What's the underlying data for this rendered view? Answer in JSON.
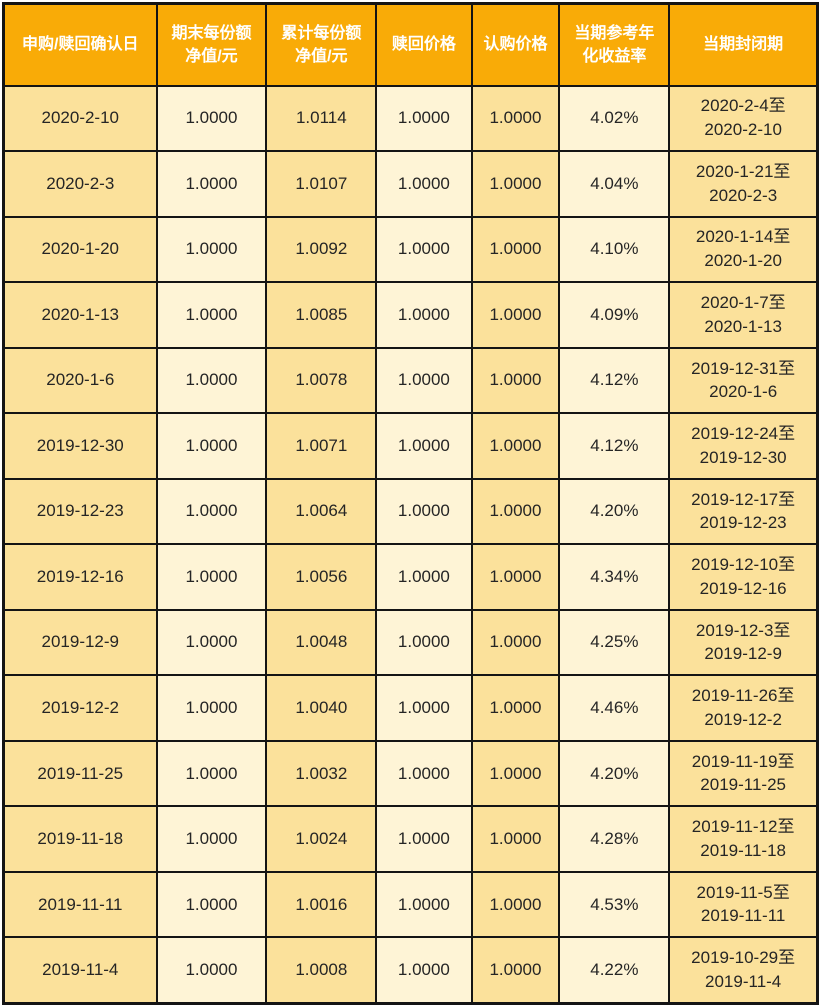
{
  "colors": {
    "header_bg": "#F9AB07",
    "header_text": "#FFFFFF",
    "cell_dark": "#FBE19B",
    "cell_light": "#FEF4D6",
    "border": "#141414",
    "body_text": "#252525"
  },
  "table": {
    "columns": [
      {
        "key": "date",
        "label": "申购/赎回确认日"
      },
      {
        "key": "nav_end",
        "label": "期末每份额\n净值/元"
      },
      {
        "key": "nav_cum",
        "label": "累计每份额\n净值/元"
      },
      {
        "key": "redeem_price",
        "label": "赎回价格"
      },
      {
        "key": "subscribe_price",
        "label": "认购价格"
      },
      {
        "key": "annual_yield",
        "label": "当期参考年\n化收益率"
      },
      {
        "key": "period",
        "label": "当期封闭期"
      }
    ],
    "rows": [
      {
        "date": "2020-2-10",
        "nav_end": "1.0000",
        "nav_cum": "1.0114",
        "redeem_price": "1.0000",
        "subscribe_price": "1.0000",
        "annual_yield": "4.02%",
        "period": "2020-2-4至\n2020-2-10"
      },
      {
        "date": "2020-2-3",
        "nav_end": "1.0000",
        "nav_cum": "1.0107",
        "redeem_price": "1.0000",
        "subscribe_price": "1.0000",
        "annual_yield": "4.04%",
        "period": "2020-1-21至\n2020-2-3"
      },
      {
        "date": "2020-1-20",
        "nav_end": "1.0000",
        "nav_cum": "1.0092",
        "redeem_price": "1.0000",
        "subscribe_price": "1.0000",
        "annual_yield": "4.10%",
        "period": "2020-1-14至\n2020-1-20"
      },
      {
        "date": "2020-1-13",
        "nav_end": "1.0000",
        "nav_cum": "1.0085",
        "redeem_price": "1.0000",
        "subscribe_price": "1.0000",
        "annual_yield": "4.09%",
        "period": "2020-1-7至\n2020-1-13"
      },
      {
        "date": "2020-1-6",
        "nav_end": "1.0000",
        "nav_cum": "1.0078",
        "redeem_price": "1.0000",
        "subscribe_price": "1.0000",
        "annual_yield": "4.12%",
        "period": "2019-12-31至\n2020-1-6"
      },
      {
        "date": "2019-12-30",
        "nav_end": "1.0000",
        "nav_cum": "1.0071",
        "redeem_price": "1.0000",
        "subscribe_price": "1.0000",
        "annual_yield": "4.12%",
        "period": "2019-12-24至\n2019-12-30"
      },
      {
        "date": "2019-12-23",
        "nav_end": "1.0000",
        "nav_cum": "1.0064",
        "redeem_price": "1.0000",
        "subscribe_price": "1.0000",
        "annual_yield": "4.20%",
        "period": "2019-12-17至\n2019-12-23"
      },
      {
        "date": "2019-12-16",
        "nav_end": "1.0000",
        "nav_cum": "1.0056",
        "redeem_price": "1.0000",
        "subscribe_price": "1.0000",
        "annual_yield": "4.34%",
        "period": "2019-12-10至\n2019-12-16"
      },
      {
        "date": "2019-12-9",
        "nav_end": "1.0000",
        "nav_cum": "1.0048",
        "redeem_price": "1.0000",
        "subscribe_price": "1.0000",
        "annual_yield": "4.25%",
        "period": "2019-12-3至\n2019-12-9"
      },
      {
        "date": "2019-12-2",
        "nav_end": "1.0000",
        "nav_cum": "1.0040",
        "redeem_price": "1.0000",
        "subscribe_price": "1.0000",
        "annual_yield": "4.46%",
        "period": "2019-11-26至\n2019-12-2"
      },
      {
        "date": "2019-11-25",
        "nav_end": "1.0000",
        "nav_cum": "1.0032",
        "redeem_price": "1.0000",
        "subscribe_price": "1.0000",
        "annual_yield": "4.20%",
        "period": "2019-11-19至\n2019-11-25"
      },
      {
        "date": "2019-11-18",
        "nav_end": "1.0000",
        "nav_cum": "1.0024",
        "redeem_price": "1.0000",
        "subscribe_price": "1.0000",
        "annual_yield": "4.28%",
        "period": "2019-11-12至\n2019-11-18"
      },
      {
        "date": "2019-11-11",
        "nav_end": "1.0000",
        "nav_cum": "1.0016",
        "redeem_price": "1.0000",
        "subscribe_price": "1.0000",
        "annual_yield": "4.53%",
        "period": "2019-11-5至\n2019-11-11"
      },
      {
        "date": "2019-11-4",
        "nav_end": "1.0000",
        "nav_cum": "1.0008",
        "redeem_price": "1.0000",
        "subscribe_price": "1.0000",
        "annual_yield": "4.22%",
        "period": "2019-10-29至\n2019-11-4"
      }
    ]
  }
}
